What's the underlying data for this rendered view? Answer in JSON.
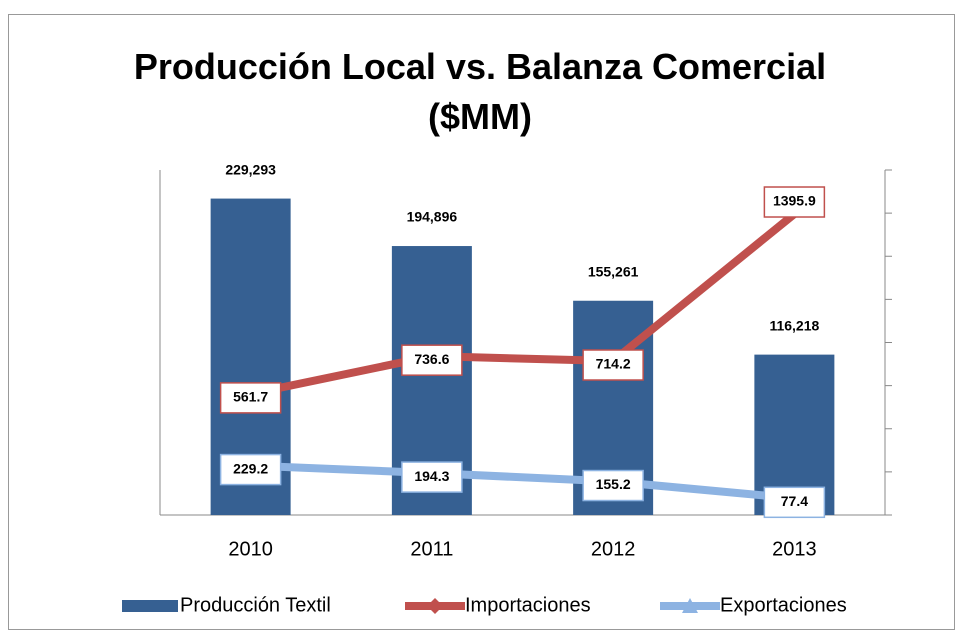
{
  "chart_data": {
    "type": "bar-line",
    "title": "Producción Local vs. Balanza Comercial ($MM)",
    "categories": [
      "2010",
      "2011",
      "2012",
      "2013"
    ],
    "ylim": [
      0,
      250000
    ],
    "y2lim": [
      0,
      1600
    ],
    "y2ticks": [
      0,
      200,
      400,
      600,
      800,
      1000,
      1200,
      1400,
      1600
    ],
    "legend": "bottom",
    "series": [
      {
        "name": "Producción Textil",
        "type": "bar",
        "color": "#366092",
        "values": [
          229293,
          194896,
          155261,
          116218
        ],
        "value_labels": [
          "229,293",
          "194,896",
          "155,261",
          "116,218"
        ]
      },
      {
        "name": "Importaciones",
        "type": "line",
        "axis": "y2",
        "marker": "diamond",
        "color": "#c0504d",
        "values": [
          561.7,
          736.6,
          714.2,
          1395.9
        ]
      },
      {
        "name": "Exportaciones",
        "type": "line",
        "axis": "y2",
        "marker": "triangle",
        "color": "#8db3e2",
        "values": [
          229.2,
          194.3,
          155.2,
          77.4
        ]
      }
    ]
  }
}
